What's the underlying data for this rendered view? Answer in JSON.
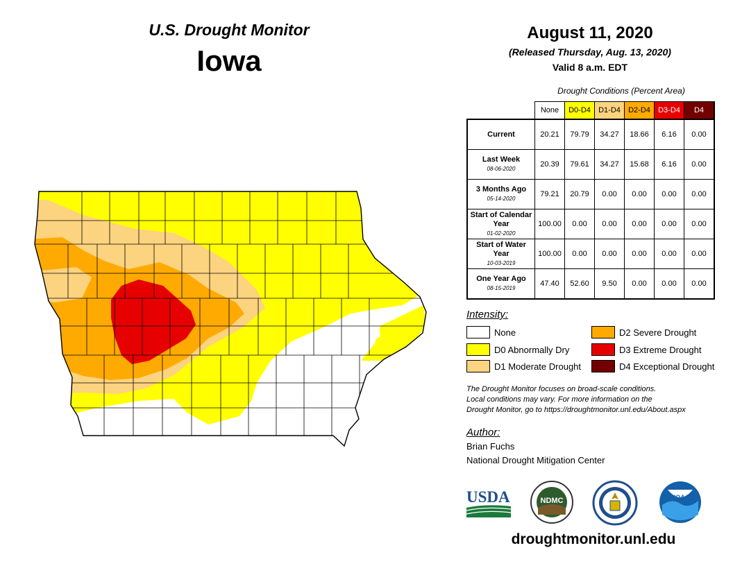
{
  "header": {
    "org_title": "U.S. Drought Monitor",
    "state": "Iowa",
    "date": "August 11, 2020",
    "released": "(Released Thursday, Aug. 13, 2020)",
    "valid": "Valid 8 a.m. EDT"
  },
  "table": {
    "caption": "Drought Conditions (Percent Area)",
    "columns": [
      {
        "label": "None",
        "color": "#ffffff",
        "text_color": "#000000"
      },
      {
        "label": "D0-D4",
        "color": "#ffff00",
        "text_color": "#000000"
      },
      {
        "label": "D1-D4",
        "color": "#fcd37f",
        "text_color": "#000000"
      },
      {
        "label": "D2-D4",
        "color": "#ffaa00",
        "text_color": "#000000"
      },
      {
        "label": "D3-D4",
        "color": "#e60000",
        "text_color": "#ffffff"
      },
      {
        "label": "D4",
        "color": "#730000",
        "text_color": "#ffffff"
      }
    ],
    "rows": [
      {
        "label": "Current",
        "date": "",
        "values": [
          "20.21",
          "79.79",
          "34.27",
          "18.66",
          "6.16",
          "0.00"
        ]
      },
      {
        "label": "Last Week",
        "date": "08-06-2020",
        "values": [
          "20.39",
          "79.61",
          "34.27",
          "15.68",
          "6.16",
          "0.00"
        ]
      },
      {
        "label": "3 Months Ago",
        "date": "05-14-2020",
        "values": [
          "79.21",
          "20.79",
          "0.00",
          "0.00",
          "0.00",
          "0.00"
        ]
      },
      {
        "label": "Start of Calendar Year",
        "date": "01-02-2020",
        "values": [
          "100.00",
          "0.00",
          "0.00",
          "0.00",
          "0.00",
          "0.00"
        ]
      },
      {
        "label": "Start of Water Year",
        "date": "10-03-2019",
        "values": [
          "100.00",
          "0.00",
          "0.00",
          "0.00",
          "0.00",
          "0.00"
        ]
      },
      {
        "label": "One Year Ago",
        "date": "08-15-2019",
        "values": [
          "47.40",
          "52.60",
          "9.50",
          "0.00",
          "0.00",
          "0.00"
        ]
      }
    ]
  },
  "legend": {
    "title": "Intensity:",
    "items": [
      {
        "label": "None",
        "color": "#ffffff"
      },
      {
        "label": "D0 Abnormally Dry",
        "color": "#ffff00"
      },
      {
        "label": "D1 Moderate Drought",
        "color": "#fcd37f"
      },
      {
        "label": "D2 Severe Drought",
        "color": "#ffaa00"
      },
      {
        "label": "D3 Extreme Drought",
        "color": "#e60000"
      },
      {
        "label": "D4 Exceptional Drought",
        "color": "#730000"
      }
    ]
  },
  "note": {
    "line1": "The Drought Monitor focuses on broad-scale conditions.",
    "line2": "Local conditions may vary. For more information on the",
    "line3": "Drought Monitor, go to https://droughtmonitor.unl.edu/About.aspx"
  },
  "author": {
    "title": "Author:",
    "name": "Brian Fuchs",
    "org": "National Drought Mitigation Center"
  },
  "logos": {
    "usda": "USDA",
    "ndmc": "NDMC",
    "noaa": "NOAA"
  },
  "site": "droughtmonitor.unl.edu",
  "map": {
    "colors": {
      "none": "#ffffff",
      "d0": "#ffff00",
      "d1": "#fcd37f",
      "d2": "#ffaa00",
      "d3": "#e60000"
    }
  }
}
